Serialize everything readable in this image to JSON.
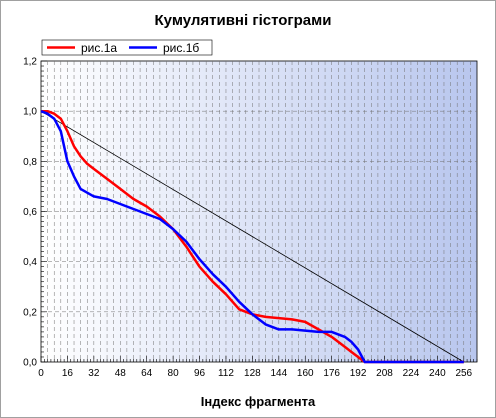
{
  "chart_data": {
    "type": "line",
    "title": "Кумулятивні гістограми",
    "xlabel": "Індекс фрагмента",
    "ylabel": "",
    "xlim": [
      0,
      264
    ],
    "ylim": [
      0,
      1.2
    ],
    "x_ticks": [
      "0",
      "16",
      "32",
      "48",
      "64",
      "80",
      "96",
      "112",
      "128",
      "144",
      "160",
      "176",
      "192",
      "208",
      "224",
      "240",
      "256"
    ],
    "y_ticks": [
      "0,0",
      "0,2",
      "0,4",
      "0,6",
      "0,8",
      "1,0",
      "1,2"
    ],
    "x_tick_values": [
      0,
      16,
      32,
      48,
      64,
      80,
      96,
      112,
      128,
      144,
      160,
      176,
      192,
      208,
      224,
      240,
      256
    ],
    "y_tick_values": [
      0,
      0.2,
      0.4,
      0.6,
      0.8,
      1.0,
      1.2
    ],
    "legend_position": "top-left",
    "background_gradient": [
      "#ffffff",
      "#b8c6ee"
    ],
    "grid": true,
    "series": [
      {
        "name": "рис.1а",
        "color": "#ff0000",
        "x": [
          0,
          4,
          8,
          12,
          16,
          20,
          24,
          28,
          32,
          40,
          48,
          56,
          64,
          72,
          80,
          88,
          96,
          104,
          112,
          120,
          128,
          136,
          144,
          152,
          160,
          168,
          176,
          184,
          188,
          192,
          196,
          256
        ],
        "y": [
          1.0,
          1.0,
          0.99,
          0.97,
          0.92,
          0.86,
          0.82,
          0.79,
          0.77,
          0.73,
          0.69,
          0.65,
          0.62,
          0.58,
          0.53,
          0.46,
          0.38,
          0.32,
          0.27,
          0.21,
          0.19,
          0.18,
          0.175,
          0.17,
          0.16,
          0.13,
          0.1,
          0.06,
          0.04,
          0.02,
          0.0,
          0.0
        ]
      },
      {
        "name": "рис.1б",
        "color": "#0000ff",
        "x": [
          0,
          4,
          8,
          12,
          14,
          16,
          20,
          24,
          32,
          40,
          48,
          56,
          64,
          72,
          80,
          88,
          96,
          104,
          112,
          120,
          128,
          136,
          144,
          152,
          160,
          168,
          176,
          180,
          184,
          188,
          192,
          196,
          256
        ],
        "y": [
          1.0,
          0.99,
          0.97,
          0.92,
          0.86,
          0.8,
          0.74,
          0.69,
          0.66,
          0.65,
          0.63,
          0.61,
          0.59,
          0.57,
          0.53,
          0.48,
          0.41,
          0.35,
          0.3,
          0.24,
          0.19,
          0.15,
          0.13,
          0.13,
          0.125,
          0.12,
          0.12,
          0.11,
          0.1,
          0.08,
          0.05,
          0.0,
          0.0
        ]
      },
      {
        "name": "",
        "color": "#000000",
        "x": [
          0,
          256
        ],
        "y": [
          1.0,
          0.0
        ]
      }
    ]
  }
}
